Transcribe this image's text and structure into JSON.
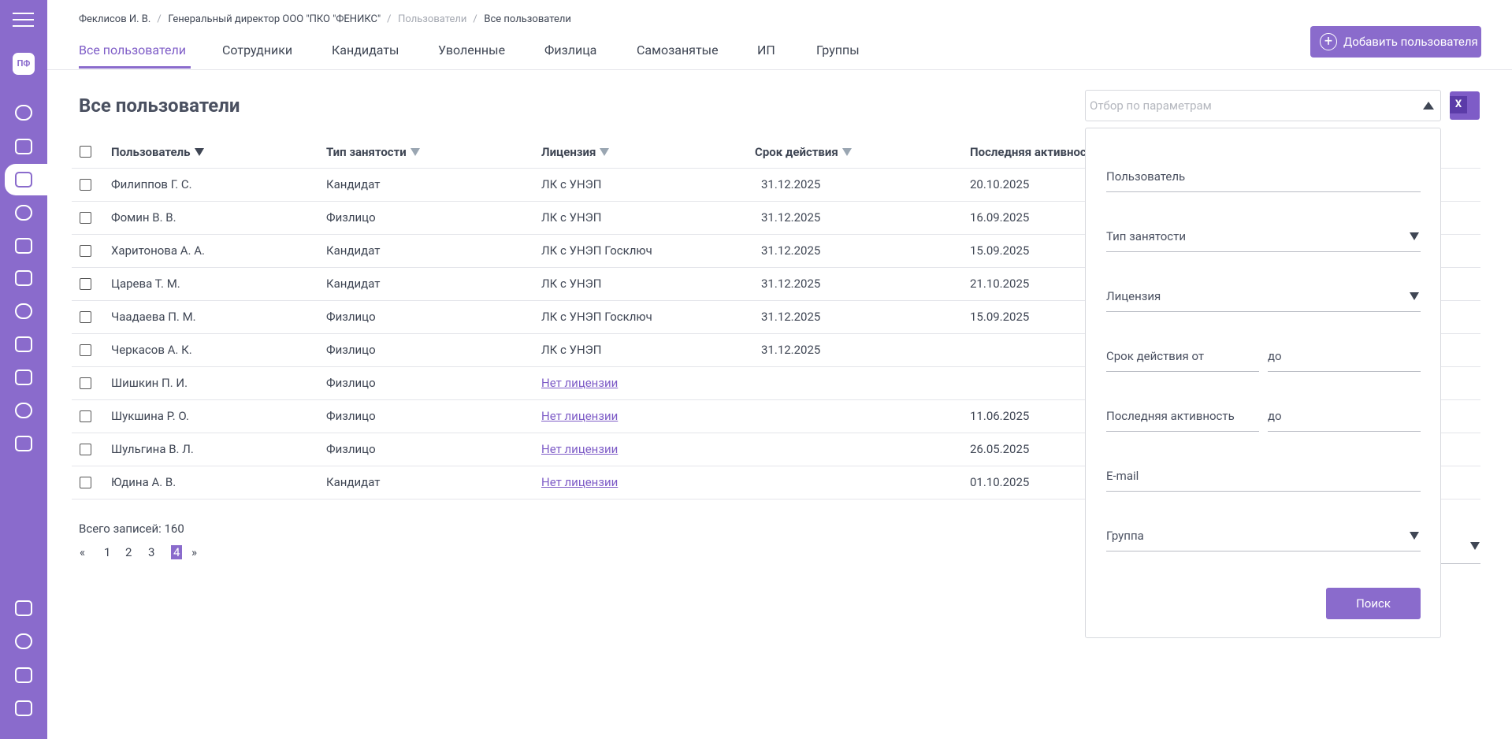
{
  "sidebar": {
    "avatar": "ПФ"
  },
  "breadcrumbs": [
    "Феклисов И. В.",
    "Генеральный директор ООО \"ПКО \"ФЕНИКС\"",
    "Пользователи",
    "Все пользователи"
  ],
  "tabs": [
    "Все пользователи",
    "Сотрудники",
    "Кандидаты",
    "Уволенные",
    "Физлица",
    "Самозанятые",
    "ИП",
    "Группы"
  ],
  "active_tab": 0,
  "add_button": "Добавить пользователя",
  "page_title": "Все пользователи",
  "filter_placeholder": "Отбор по параметрам",
  "table": {
    "columns": [
      {
        "label": "Пользователь",
        "sort": "active"
      },
      {
        "label": "Тип занятости",
        "sort": "inactive"
      },
      {
        "label": "Лицензия",
        "sort": "inactive"
      },
      {
        "label": "Срок действия",
        "sort": "inactive"
      },
      {
        "label": "Последняя активнос",
        "sort": null
      }
    ],
    "rows": [
      {
        "user": "Филиппов Г. С.",
        "type": "Кандидат",
        "license": "ЛК с УНЭП",
        "license_link": false,
        "valid_until": "31.12.2025",
        "last_activity": "20.10.2025"
      },
      {
        "user": "Фомин В. В.",
        "type": "Физлицо",
        "license": "ЛК с УНЭП",
        "license_link": false,
        "valid_until": "31.12.2025",
        "last_activity": "16.09.2025"
      },
      {
        "user": "Харитонова А. А.",
        "type": "Кандидат",
        "license": "ЛК с УНЭП Госключ",
        "license_link": false,
        "valid_until": "31.12.2025",
        "last_activity": "15.09.2025"
      },
      {
        "user": "Царева Т. М.",
        "type": "Кандидат",
        "license": "ЛК с УНЭП",
        "license_link": false,
        "valid_until": "31.12.2025",
        "last_activity": "21.10.2025"
      },
      {
        "user": "Чаадаева П. М.",
        "type": "Физлицо",
        "license": "ЛК с УНЭП Госключ",
        "license_link": false,
        "valid_until": "31.12.2025",
        "last_activity": "15.09.2025"
      },
      {
        "user": "Черкасов А. К.",
        "type": "Физлицо",
        "license": "ЛК с УНЭП",
        "license_link": false,
        "valid_until": "31.12.2025",
        "last_activity": null
      },
      {
        "user": "Шишкин П. И.",
        "type": "Физлицо",
        "license": "Нет лицензии",
        "license_link": true,
        "valid_until": null,
        "last_activity": null
      },
      {
        "user": "Шукшина Р. О.",
        "type": "Физлицо",
        "license": "Нет лицензии",
        "license_link": true,
        "valid_until": null,
        "last_activity": "11.06.2025"
      },
      {
        "user": "Шульгина В. Л.",
        "type": "Физлицо",
        "license": "Нет лицензии",
        "license_link": true,
        "valid_until": null,
        "last_activity": "26.05.2025"
      },
      {
        "user": "Юдина А. В.",
        "type": "Кандидат",
        "license": "Нет лицензии",
        "license_link": true,
        "valid_until": null,
        "last_activity": "01.10.2025"
      }
    ]
  },
  "total": "Всего записей: 160",
  "pagination": {
    "prev": "«",
    "pages": [
      "1",
      "2",
      "3",
      "4"
    ],
    "current": 3,
    "next": "»"
  },
  "filter_panel": {
    "fields": [
      {
        "label": "Пользователь",
        "dropdown": false
      },
      {
        "label": "Тип занятости",
        "dropdown": true
      },
      {
        "label": "Лицензия",
        "dropdown": true
      },
      {
        "label": "Срок действия от",
        "to": "до"
      },
      {
        "label": "Последняя активность",
        "to": "до"
      },
      {
        "label": "E-mail",
        "dropdown": false
      },
      {
        "label": "Группа",
        "dropdown": true
      }
    ],
    "search_button": "Поиск"
  }
}
